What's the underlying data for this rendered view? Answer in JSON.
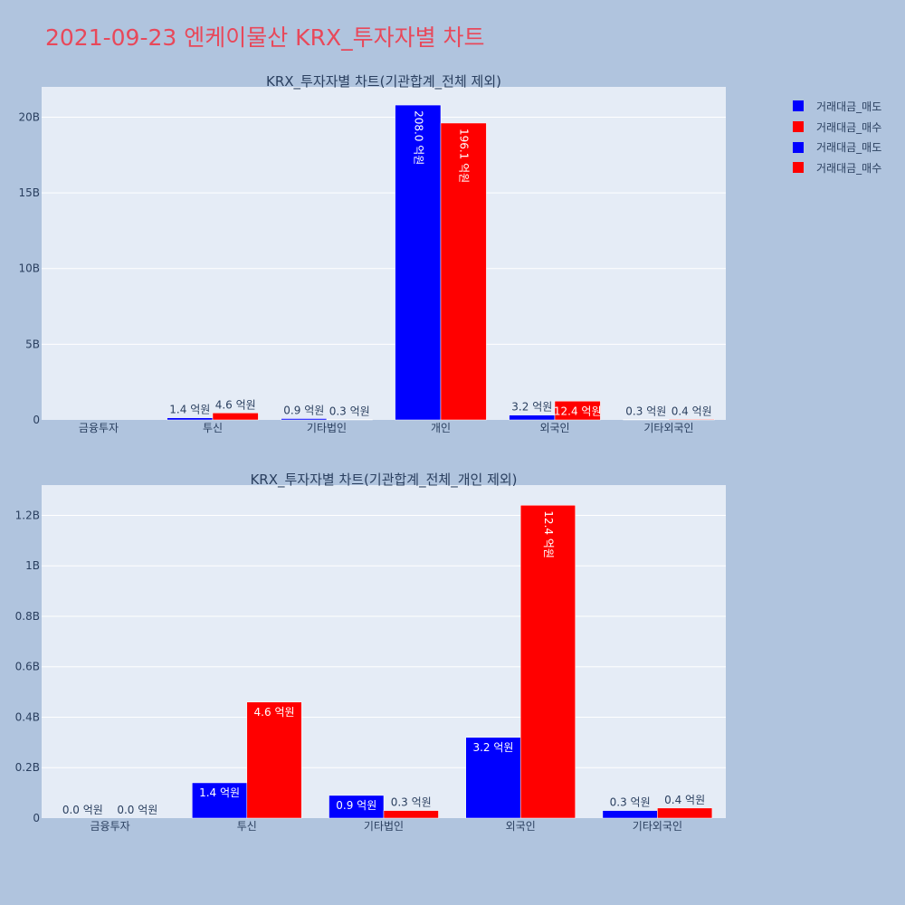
{
  "title": "2021-09-23 엔케이물산 KRX_투자자별 차트",
  "colors": {
    "sell": "#0000ff",
    "buy": "#ff0000"
  },
  "legend": [
    {
      "name": "거래대금_매도",
      "color": "#0000ff"
    },
    {
      "name": "거래대금_매수",
      "color": "#ff0000"
    },
    {
      "name": "거래대금_매도",
      "color": "#0000ff"
    },
    {
      "name": "거래대금_매수",
      "color": "#ff0000"
    }
  ],
  "chart_data": [
    {
      "type": "bar",
      "title": "KRX_투자자별 차트(기관합계_전체 제외)",
      "categories": [
        "금융투자",
        "투신",
        "기타법인",
        "개인",
        "외국인",
        "기타외국인"
      ],
      "ylim": [
        0,
        22000000000
      ],
      "yticks": [
        0,
        5000000000,
        10000000000,
        15000000000,
        20000000000
      ],
      "ytick_labels": [
        "0",
        "5B",
        "10B",
        "15B",
        "20B"
      ],
      "grid": true,
      "legend_position": "top-right",
      "series": [
        {
          "name": "거래대금_매도",
          "color": "#0000ff",
          "values": [
            0,
            140000000,
            90000000,
            20800000000,
            320000000,
            30000000
          ],
          "labels": [
            "",
            "1.4 억원",
            "0.9 억원",
            "208.0 억원",
            "3.2 억원",
            "0.3 억원"
          ]
        },
        {
          "name": "거래대금_매수",
          "color": "#ff0000",
          "values": [
            0,
            460000000,
            30000000,
            19610000000,
            1240000000,
            40000000
          ],
          "labels": [
            "",
            "4.6 억원",
            "0.3 억원",
            "196.1 억원",
            "12.4 억원",
            "0.4 억원"
          ]
        }
      ]
    },
    {
      "type": "bar",
      "title": "KRX_투자자별 차트(기관합계_전체_개인 제외)",
      "categories": [
        "금융투자",
        "투신",
        "기타법인",
        "외국인",
        "기타외국인"
      ],
      "ylim": [
        0,
        1320000000
      ],
      "yticks": [
        0,
        200000000,
        400000000,
        600000000,
        800000000,
        1000000000,
        1200000000
      ],
      "ytick_labels": [
        "0",
        "0.2B",
        "0.4B",
        "0.6B",
        "0.8B",
        "1B",
        "1.2B"
      ],
      "grid": true,
      "series": [
        {
          "name": "거래대금_매도",
          "color": "#0000ff",
          "values": [
            0,
            140000000,
            90000000,
            320000000,
            30000000
          ],
          "labels": [
            "0.0 억원",
            "1.4 억원",
            "0.9 억원",
            "3.2 억원",
            "0.3 억원"
          ]
        },
        {
          "name": "거래대금_매수",
          "color": "#ff0000",
          "values": [
            0,
            460000000,
            30000000,
            1240000000,
            40000000
          ],
          "labels": [
            "0.0 억원",
            "4.6 억원",
            "0.3 억원",
            "12.4 억원",
            "0.4 억원"
          ]
        }
      ]
    }
  ]
}
